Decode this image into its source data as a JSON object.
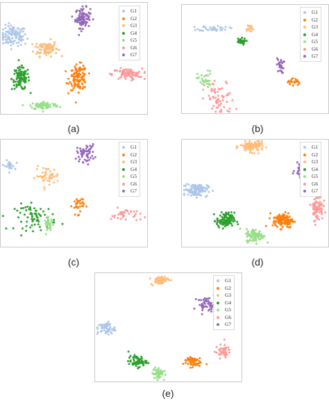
{
  "chart_data": [
    {
      "type": "scatter",
      "panel_label": "(a)",
      "legend_placement": "top-right",
      "grid": false,
      "series": [
        {
          "name": "G1",
          "color": "#aec7e8"
        },
        {
          "name": "G2",
          "color": "#ff7f0e"
        },
        {
          "name": "G3",
          "color": "#ffbb78"
        },
        {
          "name": "G4",
          "color": "#2ca02c"
        },
        {
          "name": "G5",
          "color": "#98df8a"
        },
        {
          "name": "G6",
          "color": "#ff9896"
        },
        {
          "name": "G7",
          "color": "#9467bd"
        }
      ],
      "clusters": [
        {
          "series": "G1",
          "x": 0.09,
          "y": 0.7,
          "sx": 0.045,
          "sy": 0.045,
          "n": 110
        },
        {
          "series": "G3",
          "x": 0.31,
          "y": 0.59,
          "sx": 0.04,
          "sy": 0.035,
          "n": 90
        },
        {
          "series": "G7",
          "x": 0.56,
          "y": 0.86,
          "sx": 0.025,
          "sy": 0.045,
          "n": 95
        },
        {
          "series": "G4",
          "x": 0.14,
          "y": 0.32,
          "sx": 0.03,
          "sy": 0.05,
          "n": 110
        },
        {
          "series": "G2",
          "x": 0.53,
          "y": 0.33,
          "sx": 0.03,
          "sy": 0.055,
          "n": 120
        },
        {
          "series": "G6",
          "x": 0.86,
          "y": 0.36,
          "sx": 0.05,
          "sy": 0.025,
          "n": 80
        },
        {
          "series": "G5",
          "x": 0.3,
          "y": 0.08,
          "sx": 0.05,
          "sy": 0.018,
          "n": 80
        }
      ]
    },
    {
      "type": "scatter",
      "panel_label": "(b)",
      "legend_placement": "top-right",
      "grid": false,
      "series": [
        {
          "name": "G1",
          "color": "#aec7e8"
        },
        {
          "name": "G2",
          "color": "#ff7f0e"
        },
        {
          "name": "G3",
          "color": "#ffbb78"
        },
        {
          "name": "G4",
          "color": "#2ca02c"
        },
        {
          "name": "G5",
          "color": "#98df8a"
        },
        {
          "name": "G6",
          "color": "#ff9896"
        },
        {
          "name": "G7",
          "color": "#9467bd"
        }
      ],
      "clusters": [
        {
          "series": "G1",
          "x": 0.22,
          "y": 0.78,
          "sx": 0.05,
          "sy": 0.012,
          "n": 40
        },
        {
          "series": "G3",
          "x": 0.46,
          "y": 0.78,
          "sx": 0.015,
          "sy": 0.02,
          "n": 20
        },
        {
          "series": "G4",
          "x": 0.4,
          "y": 0.66,
          "sx": 0.018,
          "sy": 0.015,
          "n": 30
        },
        {
          "series": "G7",
          "x": 0.67,
          "y": 0.44,
          "sx": 0.012,
          "sy": 0.035,
          "n": 25
        },
        {
          "series": "G2",
          "x": 0.76,
          "y": 0.29,
          "sx": 0.02,
          "sy": 0.02,
          "n": 20
        },
        {
          "series": "G5",
          "x": 0.16,
          "y": 0.31,
          "sx": 0.025,
          "sy": 0.04,
          "n": 35
        },
        {
          "series": "G6",
          "x": 0.26,
          "y": 0.13,
          "sx": 0.05,
          "sy": 0.09,
          "n": 60
        }
      ]
    },
    {
      "type": "scatter",
      "panel_label": "(c)",
      "legend_placement": "top-right",
      "grid": false,
      "series": [
        {
          "name": "G1",
          "color": "#aec7e8"
        },
        {
          "name": "G2",
          "color": "#ff7f0e"
        },
        {
          "name": "G3",
          "color": "#ffbb78"
        },
        {
          "name": "G4",
          "color": "#2ca02c"
        },
        {
          "name": "G5",
          "color": "#98df8a"
        },
        {
          "name": "G6",
          "color": "#ff9896"
        },
        {
          "name": "G7",
          "color": "#9467bd"
        }
      ],
      "clusters": [
        {
          "series": "G7",
          "x": 0.58,
          "y": 0.87,
          "sx": 0.03,
          "sy": 0.04,
          "n": 55
        },
        {
          "series": "G1",
          "x": 0.06,
          "y": 0.75,
          "sx": 0.02,
          "sy": 0.025,
          "n": 25
        },
        {
          "series": "G3",
          "x": 0.32,
          "y": 0.66,
          "sx": 0.04,
          "sy": 0.04,
          "n": 45
        },
        {
          "series": "G4",
          "x": 0.24,
          "y": 0.28,
          "sx": 0.07,
          "sy": 0.06,
          "n": 70
        },
        {
          "series": "G5",
          "x": 0.33,
          "y": 0.21,
          "sx": 0.015,
          "sy": 0.03,
          "n": 30
        },
        {
          "series": "G2",
          "x": 0.53,
          "y": 0.39,
          "sx": 0.02,
          "sy": 0.04,
          "n": 35
        },
        {
          "series": "G6",
          "x": 0.85,
          "y": 0.3,
          "sx": 0.05,
          "sy": 0.03,
          "n": 35
        }
      ]
    },
    {
      "type": "scatter",
      "panel_label": "(d)",
      "legend_placement": "top-right",
      "grid": false,
      "series": [
        {
          "name": "G1",
          "color": "#aec7e8"
        },
        {
          "name": "G2",
          "color": "#ff7f0e"
        },
        {
          "name": "G3",
          "color": "#ffbb78"
        },
        {
          "name": "G4",
          "color": "#2ca02c"
        },
        {
          "name": "G5",
          "color": "#98df8a"
        },
        {
          "name": "G6",
          "color": "#ff9896"
        },
        {
          "name": "G7",
          "color": "#9467bd"
        }
      ],
      "clusters": [
        {
          "series": "G3",
          "x": 0.48,
          "y": 0.93,
          "sx": 0.04,
          "sy": 0.025,
          "n": 110
        },
        {
          "series": "G7",
          "x": 0.83,
          "y": 0.71,
          "sx": 0.03,
          "sy": 0.03,
          "n": 70
        },
        {
          "series": "G1",
          "x": 0.1,
          "y": 0.53,
          "sx": 0.04,
          "sy": 0.03,
          "n": 120
        },
        {
          "series": "G4",
          "x": 0.3,
          "y": 0.25,
          "sx": 0.03,
          "sy": 0.035,
          "n": 110
        },
        {
          "series": "G2",
          "x": 0.69,
          "y": 0.25,
          "sx": 0.035,
          "sy": 0.035,
          "n": 120
        },
        {
          "series": "G5",
          "x": 0.5,
          "y": 0.11,
          "sx": 0.03,
          "sy": 0.03,
          "n": 100
        },
        {
          "series": "G6",
          "x": 0.92,
          "y": 0.37,
          "sx": 0.02,
          "sy": 0.06,
          "n": 75
        }
      ]
    },
    {
      "type": "scatter",
      "panel_label": "(e)",
      "legend_placement": "top-right",
      "grid": false,
      "series": [
        {
          "name": "G1",
          "color": "#aec7e8"
        },
        {
          "name": "G2",
          "color": "#ff7f0e"
        },
        {
          "name": "G3",
          "color": "#ffbb78"
        },
        {
          "name": "G4",
          "color": "#2ca02c"
        },
        {
          "name": "G5",
          "color": "#98df8a"
        },
        {
          "name": "G6",
          "color": "#ff9896"
        },
        {
          "name": "G7",
          "color": "#9467bd"
        }
      ],
      "clusters": [
        {
          "series": "G3",
          "x": 0.44,
          "y": 0.93,
          "sx": 0.03,
          "sy": 0.02,
          "n": 55
        },
        {
          "series": "G7",
          "x": 0.76,
          "y": 0.71,
          "sx": 0.03,
          "sy": 0.03,
          "n": 45
        },
        {
          "series": "G1",
          "x": 0.08,
          "y": 0.49,
          "sx": 0.03,
          "sy": 0.03,
          "n": 60
        },
        {
          "series": "G4",
          "x": 0.29,
          "y": 0.19,
          "sx": 0.03,
          "sy": 0.025,
          "n": 60
        },
        {
          "series": "G5",
          "x": 0.43,
          "y": 0.08,
          "sx": 0.018,
          "sy": 0.03,
          "n": 55
        },
        {
          "series": "G2",
          "x": 0.66,
          "y": 0.19,
          "sx": 0.03,
          "sy": 0.025,
          "n": 55
        },
        {
          "series": "G6",
          "x": 0.87,
          "y": 0.28,
          "sx": 0.025,
          "sy": 0.03,
          "n": 45
        }
      ]
    }
  ]
}
